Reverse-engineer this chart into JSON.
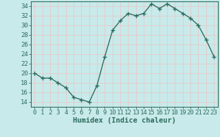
{
  "x": [
    0,
    1,
    2,
    3,
    4,
    5,
    6,
    7,
    8,
    9,
    10,
    11,
    12,
    13,
    14,
    15,
    16,
    17,
    18,
    19,
    20,
    21,
    22,
    23
  ],
  "y": [
    20,
    19,
    19,
    18,
    17,
    15,
    14.5,
    14,
    17.5,
    23.5,
    29,
    31,
    32.5,
    32,
    32.5,
    34.5,
    33.5,
    34.5,
    33.5,
    32.5,
    31.5,
    30,
    27,
    23.5
  ],
  "line_color": "#2d6b5e",
  "marker": "+",
  "marker_size": 4,
  "bg_color": "#c8eaea",
  "grid_color": "#e8c8c8",
  "title": "",
  "xlabel": "Humidex (Indice chaleur)",
  "ylabel": "",
  "xlim": [
    -0.5,
    23.5
  ],
  "ylim": [
    13,
    35
  ],
  "yticks": [
    14,
    16,
    18,
    20,
    22,
    24,
    26,
    28,
    30,
    32,
    34
  ],
  "xticks": [
    0,
    1,
    2,
    3,
    4,
    5,
    6,
    7,
    8,
    9,
    10,
    11,
    12,
    13,
    14,
    15,
    16,
    17,
    18,
    19,
    20,
    21,
    22,
    23
  ],
  "tick_label_fontsize": 6.5,
  "xlabel_fontsize": 7.5,
  "linewidth": 1.0
}
